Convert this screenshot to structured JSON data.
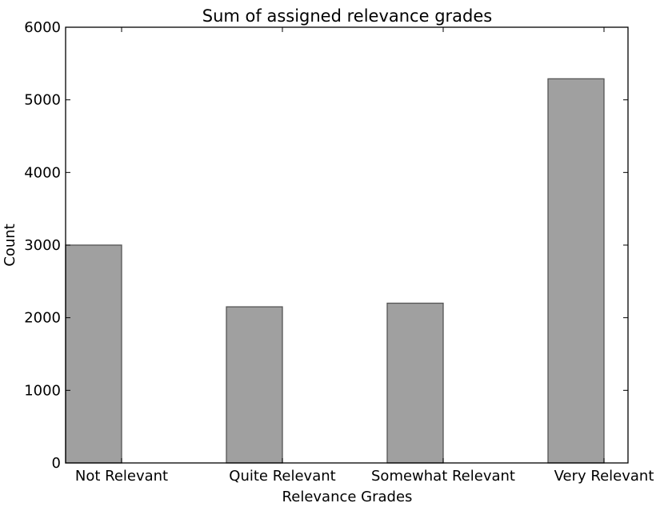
{
  "chart_data": {
    "type": "bar",
    "title": "Sum of assigned relevance grades",
    "xlabel": "Relevance Grades",
    "ylabel": "Count",
    "categories": [
      "Not Relevant",
      "Quite Relevant",
      "Somewhat Relevant",
      "Very Relevant"
    ],
    "values": [
      3000,
      2150,
      2200,
      5290
    ],
    "ylim": [
      0,
      6000
    ],
    "yticks": [
      "0",
      "1000",
      "2000",
      "3000",
      "4000",
      "5000",
      "6000"
    ],
    "grid": false,
    "legend": "none",
    "bar_color": "#a0a0a0",
    "bar_edge_color": "#555555",
    "axis_color": "#000000"
  }
}
